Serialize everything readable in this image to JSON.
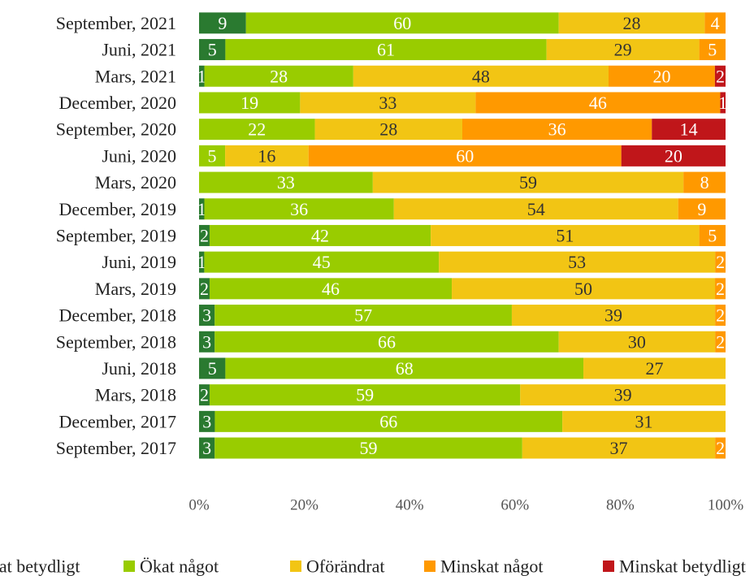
{
  "chart_data": {
    "type": "bar",
    "orientation": "horizontal",
    "stacking": "percent",
    "categories": [
      "September, 2021",
      "Juni, 2021",
      "Mars, 2021",
      "December, 2020",
      "September, 2020",
      "Juni, 2020",
      "Mars, 2020",
      "December, 2019",
      "September, 2019",
      "Juni, 2019",
      "Mars, 2019",
      "December, 2018",
      "September, 2018",
      "Juni, 2018",
      "Mars, 2018",
      "December, 2017",
      "September, 2017"
    ],
    "series": [
      {
        "name": "Ökat betydligt",
        "color": "#2a7a30",
        "label_color": "#ffffff",
        "values": [
          9,
          5,
          1,
          null,
          null,
          null,
          null,
          1,
          2,
          1,
          2,
          3,
          3,
          5,
          2,
          3,
          3
        ]
      },
      {
        "name": "Ökat något",
        "color": "#99cc00",
        "label_color": "#ffffff",
        "values": [
          60,
          61,
          28,
          19,
          22,
          5,
          33,
          36,
          42,
          45,
          46,
          57,
          66,
          68,
          59,
          66,
          59
        ]
      },
      {
        "name": "Oförändrat",
        "color": "#f2c514",
        "label_color": "#333333",
        "values": [
          28,
          29,
          48,
          33,
          28,
          16,
          59,
          54,
          51,
          53,
          50,
          39,
          30,
          27,
          39,
          31,
          37
        ]
      },
      {
        "name": "Minskat något",
        "color": "#ff9900",
        "label_color": "#ffffff",
        "values": [
          4,
          5,
          20,
          46,
          36,
          60,
          8,
          9,
          5,
          2,
          2,
          2,
          2,
          null,
          null,
          null,
          2
        ]
      },
      {
        "name": "Minskat betydligt",
        "color": "#c0161a",
        "label_color": "#ffffff",
        "values": [
          null,
          null,
          2,
          1,
          14,
          20,
          null,
          null,
          null,
          null,
          null,
          null,
          null,
          null,
          null,
          null,
          null
        ]
      }
    ],
    "xlim": [
      0,
      100
    ],
    "xticks": [
      {
        "value": 0,
        "label": "0%"
      },
      {
        "value": 20,
        "label": "20%"
      },
      {
        "value": 40,
        "label": "40%"
      },
      {
        "value": 60,
        "label": "60%"
      },
      {
        "value": 80,
        "label": "80%"
      },
      {
        "value": 100,
        "label": "100%"
      }
    ],
    "legend": "bottom"
  }
}
